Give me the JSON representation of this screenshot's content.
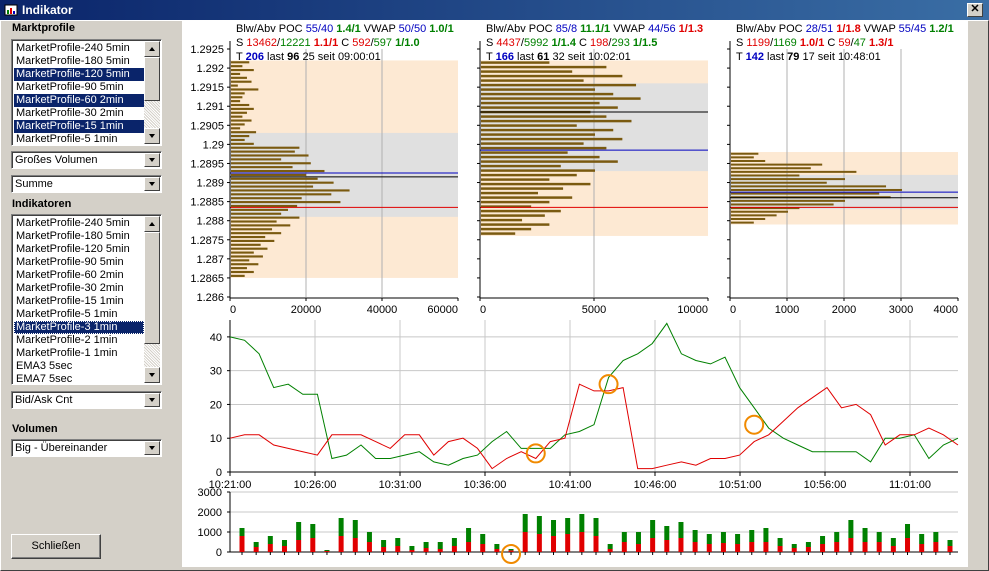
{
  "window": {
    "title": "Indikator",
    "close_label": "✕"
  },
  "left": {
    "marktprofile_label": "Marktprofile",
    "marktprofile_items": [
      {
        "label": "MarketProfile-240 5min",
        "selected": false
      },
      {
        "label": "MarketProfile-180 5min",
        "selected": false
      },
      {
        "label": "MarketProfile-120 5min",
        "selected": true
      },
      {
        "label": "MarketProfile-90 5min",
        "selected": false
      },
      {
        "label": "MarketProfile-60 2min",
        "selected": true
      },
      {
        "label": "MarketProfile-30 2min",
        "selected": false
      },
      {
        "label": "MarketProfile-15 1min",
        "selected": true
      },
      {
        "label": "MarketProfile-5 1min",
        "selected": false
      }
    ],
    "combo1": "Großes Volumen",
    "combo2": "Summe",
    "indikatoren_label": "Indikatoren",
    "indikatoren_items": [
      {
        "label": "MarketProfile-240 5min",
        "selected": false
      },
      {
        "label": "MarketProfile-180 5min",
        "selected": false
      },
      {
        "label": "MarketProfile-120 5min",
        "selected": false
      },
      {
        "label": "MarketProfile-90 5min",
        "selected": false
      },
      {
        "label": "MarketProfile-60 2min",
        "selected": false
      },
      {
        "label": "MarketProfile-30 2min",
        "selected": false
      },
      {
        "label": "MarketProfile-15 1min",
        "selected": false
      },
      {
        "label": "MarketProfile-5 1min",
        "selected": false
      },
      {
        "label": "MarketProfile-3 1min",
        "selected": true
      },
      {
        "label": "MarketProfile-2 1min",
        "selected": false
      },
      {
        "label": "MarketProfile-1 1min",
        "selected": false
      },
      {
        "label": "EMA3 5sec",
        "selected": false
      },
      {
        "label": "EMA7 5sec",
        "selected": false
      }
    ],
    "combo3": "Bid/Ask Cnt",
    "volumen_label": "Volumen",
    "combo4": "Big - Übereinander",
    "close_button": "Schließen"
  },
  "colors": {
    "red": "#e00000",
    "green": "#008000",
    "blue": "#0000c0",
    "bar": "#7a5a10",
    "orange_zone": "#fde9d3",
    "gray_zone": "#e0e0e0"
  },
  "profiles": [
    {
      "line1": [
        {
          "t": "Blw/Abv POC ",
          "c": "k"
        },
        {
          "t": "55/40",
          "c": "b"
        },
        {
          "t": " ",
          "c": "k"
        },
        {
          "t": "1.4/1",
          "c": "g"
        },
        {
          "t": " VWAP ",
          "c": "k"
        },
        {
          "t": "50/50",
          "c": "b"
        },
        {
          "t": " ",
          "c": "k"
        },
        {
          "t": "1.0/1",
          "c": "g"
        }
      ],
      "line2": [
        {
          "t": "S ",
          "c": "k"
        },
        {
          "t": "13462",
          "c": "r"
        },
        {
          "t": "/",
          "c": "k"
        },
        {
          "t": "12221",
          "c": "g"
        },
        {
          "t": " ",
          "c": "k"
        },
        {
          "t": "1.1/1",
          "c": "r"
        },
        {
          "t": " C ",
          "c": "k"
        },
        {
          "t": "592",
          "c": "r"
        },
        {
          "t": "/",
          "c": "k"
        },
        {
          "t": "597",
          "c": "g"
        },
        {
          "t": " ",
          "c": "k"
        },
        {
          "t": "1/1.0",
          "c": "g"
        }
      ],
      "line3": [
        {
          "t": "T ",
          "c": "k"
        },
        {
          "t": "206",
          "c": "b"
        },
        {
          "t": " last ",
          "c": "k"
        },
        {
          "t": "96",
          "c": "kb"
        },
        {
          "t": "     25 seit 09:00:01",
          "c": "k"
        }
      ],
      "xmax": 60000,
      "xticks": [
        "0",
        "20000",
        "40000",
        "60000"
      ],
      "zones": [
        {
          "from": 1.2922,
          "to": 1.2865,
          "type": "orange"
        },
        {
          "from": 1.2903,
          "to": 1.2881,
          "type": "gray"
        }
      ],
      "lines": [
        {
          "y": 1.28925,
          "color": "blue"
        },
        {
          "y": 1.28915,
          "color": "black"
        },
        {
          "y": 1.28835,
          "color": "red"
        }
      ],
      "bars": [
        0.08,
        0.05,
        0.1,
        0.04,
        0.07,
        0.09,
        0.03,
        0.12,
        0.06,
        0.05,
        0.04,
        0.08,
        0.1,
        0.07,
        0.05,
        0.09,
        0.06,
        0.04,
        0.11,
        0.08,
        0.06,
        0.1,
        0.3,
        0.28,
        0.34,
        0.22,
        0.35,
        0.27,
        0.41,
        0.33,
        0.38,
        0.45,
        0.36,
        0.52,
        0.44,
        0.31,
        0.48,
        0.29,
        0.25,
        0.22,
        0.3,
        0.2,
        0.26,
        0.18,
        0.22,
        0.15,
        0.19,
        0.13,
        0.16,
        0.1,
        0.14,
        0.08,
        0.12,
        0.07,
        0.1,
        0.06
      ]
    },
    {
      "line1": [
        {
          "t": "Blw/Abv POC ",
          "c": "k"
        },
        {
          "t": "85/8",
          "c": "b"
        },
        {
          "t": " ",
          "c": "k"
        },
        {
          "t": "11.1/1",
          "c": "g"
        },
        {
          "t": " VWAP ",
          "c": "k"
        },
        {
          "t": "44/56",
          "c": "b"
        },
        {
          "t": " ",
          "c": "k"
        },
        {
          "t": "1/1.3",
          "c": "r"
        }
      ],
      "line2": [
        {
          "t": "S ",
          "c": "k"
        },
        {
          "t": "4437",
          "c": "r"
        },
        {
          "t": "/",
          "c": "k"
        },
        {
          "t": "5992",
          "c": "g"
        },
        {
          "t": " ",
          "c": "k"
        },
        {
          "t": "1/1.4",
          "c": "g"
        },
        {
          "t": " C ",
          "c": "k"
        },
        {
          "t": "198",
          "c": "r"
        },
        {
          "t": "/",
          "c": "k"
        },
        {
          "t": "293",
          "c": "g"
        },
        {
          "t": " ",
          "c": "k"
        },
        {
          "t": "1/1.5",
          "c": "g"
        }
      ],
      "line3": [
        {
          "t": "T ",
          "c": "k"
        },
        {
          "t": "166",
          "c": "b"
        },
        {
          "t": " last ",
          "c": "k"
        },
        {
          "t": "61",
          "c": "kb"
        },
        {
          "t": "     32 seit 10:02:01",
          "c": "k"
        }
      ],
      "xmax": 10000,
      "xticks": [
        "0",
        "5000",
        "10000"
      ],
      "zones": [
        {
          "from": 1.2922,
          "to": 1.2876,
          "type": "orange"
        },
        {
          "from": 1.2916,
          "to": 1.2893,
          "type": "gray"
        }
      ],
      "lines": [
        {
          "y": 1.29085,
          "color": "black"
        },
        {
          "y": 1.28985,
          "color": "blue"
        },
        {
          "y": 1.28835,
          "color": "red"
        }
      ],
      "bars": [
        0.3,
        0.55,
        0.4,
        0.62,
        0.45,
        0.68,
        0.5,
        0.58,
        0.7,
        0.52,
        0.6,
        0.48,
        0.55,
        0.66,
        0.42,
        0.58,
        0.5,
        0.62,
        0.45,
        0.55,
        0.38,
        0.52,
        0.6,
        0.35,
        0.5,
        0.42,
        0.3,
        0.48,
        0.36,
        0.25,
        0.4,
        0.3,
        0.22,
        0.35,
        0.28,
        0.18,
        0.3,
        0.22,
        0.15
      ]
    },
    {
      "line1": [
        {
          "t": "Blw/Abv POC ",
          "c": "k"
        },
        {
          "t": "28/51",
          "c": "b"
        },
        {
          "t": " ",
          "c": "k"
        },
        {
          "t": "1/1.8",
          "c": "r"
        },
        {
          "t": " VWAP ",
          "c": "k"
        },
        {
          "t": "55/45",
          "c": "b"
        },
        {
          "t": " ",
          "c": "k"
        },
        {
          "t": "1.2/1",
          "c": "g"
        }
      ],
      "line2": [
        {
          "t": "S ",
          "c": "k"
        },
        {
          "t": "1199",
          "c": "r"
        },
        {
          "t": "/",
          "c": "k"
        },
        {
          "t": "1169",
          "c": "g"
        },
        {
          "t": " ",
          "c": "k"
        },
        {
          "t": "1.0/1",
          "c": "r"
        },
        {
          "t": " C ",
          "c": "k"
        },
        {
          "t": "59",
          "c": "r"
        },
        {
          "t": "/",
          "c": "k"
        },
        {
          "t": "47",
          "c": "g"
        },
        {
          "t": " ",
          "c": "k"
        },
        {
          "t": "1.3/1",
          "c": "r"
        }
      ],
      "line3": [
        {
          "t": "T ",
          "c": "k"
        },
        {
          "t": "142",
          "c": "b"
        },
        {
          "t": " last ",
          "c": "k"
        },
        {
          "t": "79",
          "c": "kb"
        },
        {
          "t": "     17 seit 10:48:01",
          "c": "k"
        }
      ],
      "xmax": 4000,
      "xticks": [
        "0",
        "1000",
        "2000",
        "3000",
        "4000"
      ],
      "zones": [
        {
          "from": 1.2898,
          "to": 1.2879,
          "type": "orange"
        },
        {
          "from": 1.2892,
          "to": 1.2883,
          "type": "gray"
        }
      ],
      "lines": [
        {
          "y": 1.28875,
          "color": "blue"
        },
        {
          "y": 1.2886,
          "color": "black"
        },
        {
          "y": 1.28835,
          "color": "red"
        }
      ],
      "bars": [
        0.12,
        0.1,
        0.15,
        0.4,
        0.35,
        0.55,
        0.3,
        0.5,
        0.42,
        0.68,
        0.75,
        0.65,
        0.7,
        0.5,
        0.45,
        0.3,
        0.25,
        0.2,
        0.15,
        0.1
      ]
    }
  ],
  "profile_ymax": 1.2925,
  "profile_ymin": 1.286,
  "profile_yticks": [
    "1.2925",
    "1.292",
    "1.2915",
    "1.291",
    "1.2905",
    "1.29",
    "1.2895",
    "1.289",
    "1.2885",
    "1.288",
    "1.2875",
    "1.287",
    "1.2865",
    "1.286"
  ],
  "chart_data": {
    "type": "line",
    "x_ticks": [
      "10:21:00",
      "10:26:00",
      "10:31:00",
      "10:36:00",
      "10:41:00",
      "10:46:00",
      "10:51:00",
      "10:56:00",
      "11:01:00"
    ],
    "ylim": [
      0,
      45
    ],
    "y_ticks": [
      "0",
      "10",
      "20",
      "30",
      "40"
    ],
    "series": [
      {
        "name": "",
        "color": "green",
        "values": [
          40,
          39,
          35,
          25,
          26,
          23,
          23,
          4,
          5,
          8,
          4,
          4,
          5,
          6,
          3,
          2,
          4,
          5,
          9,
          12,
          7,
          7,
          7,
          11,
          12,
          14,
          28,
          33,
          35,
          38,
          44,
          35,
          33,
          32,
          34,
          25,
          19,
          13,
          10,
          8,
          6,
          6,
          6,
          6,
          3,
          10,
          10,
          11,
          4,
          8,
          10
        ]
      },
      {
        "name": "",
        "color": "red",
        "values": [
          10,
          11,
          11,
          8,
          7,
          6,
          5,
          11,
          11,
          11,
          9,
          7,
          11,
          11,
          5,
          9,
          10,
          7,
          1,
          4,
          6,
          4,
          9,
          10,
          26,
          24,
          24,
          25,
          1,
          1,
          2,
          3,
          2,
          4,
          4,
          5,
          9,
          11,
          15,
          19,
          22,
          25,
          19,
          20,
          17,
          8,
          11,
          11,
          13,
          11,
          8
        ]
      }
    ],
    "volume": {
      "ylim": [
        0,
        3000
      ],
      "y_ticks": [
        "0",
        "1000",
        "2000",
        "3000"
      ],
      "total": [
        1200,
        500,
        800,
        600,
        1500,
        1400,
        100,
        1700,
        1600,
        1000,
        600,
        700,
        300,
        500,
        500,
        700,
        1200,
        900,
        400,
        150,
        1900,
        1800,
        1600,
        1700,
        1900,
        1700,
        400,
        1000,
        1000,
        1600,
        1300,
        1500,
        1100,
        900,
        1000,
        900,
        1100,
        1200,
        700,
        400,
        500,
        800,
        1000,
        1600,
        1200,
        1000,
        700,
        1400,
        900,
        1000,
        600
      ],
      "red": [
        800,
        250,
        400,
        300,
        600,
        700,
        50,
        800,
        700,
        500,
        250,
        300,
        100,
        200,
        150,
        300,
        500,
        400,
        150,
        80,
        1000,
        900,
        800,
        900,
        1000,
        800,
        150,
        500,
        400,
        700,
        600,
        700,
        500,
        400,
        450,
        400,
        500,
        500,
        300,
        200,
        250,
        400,
        500,
        700,
        500,
        500,
        300,
        700,
        400,
        500,
        300
      ]
    },
    "markers": [
      {
        "chart": "line",
        "idx": 21
      },
      {
        "chart": "line",
        "idx": 26
      },
      {
        "chart": "line",
        "idx": 36
      },
      {
        "chart": "volume",
        "idx": 19
      }
    ]
  }
}
